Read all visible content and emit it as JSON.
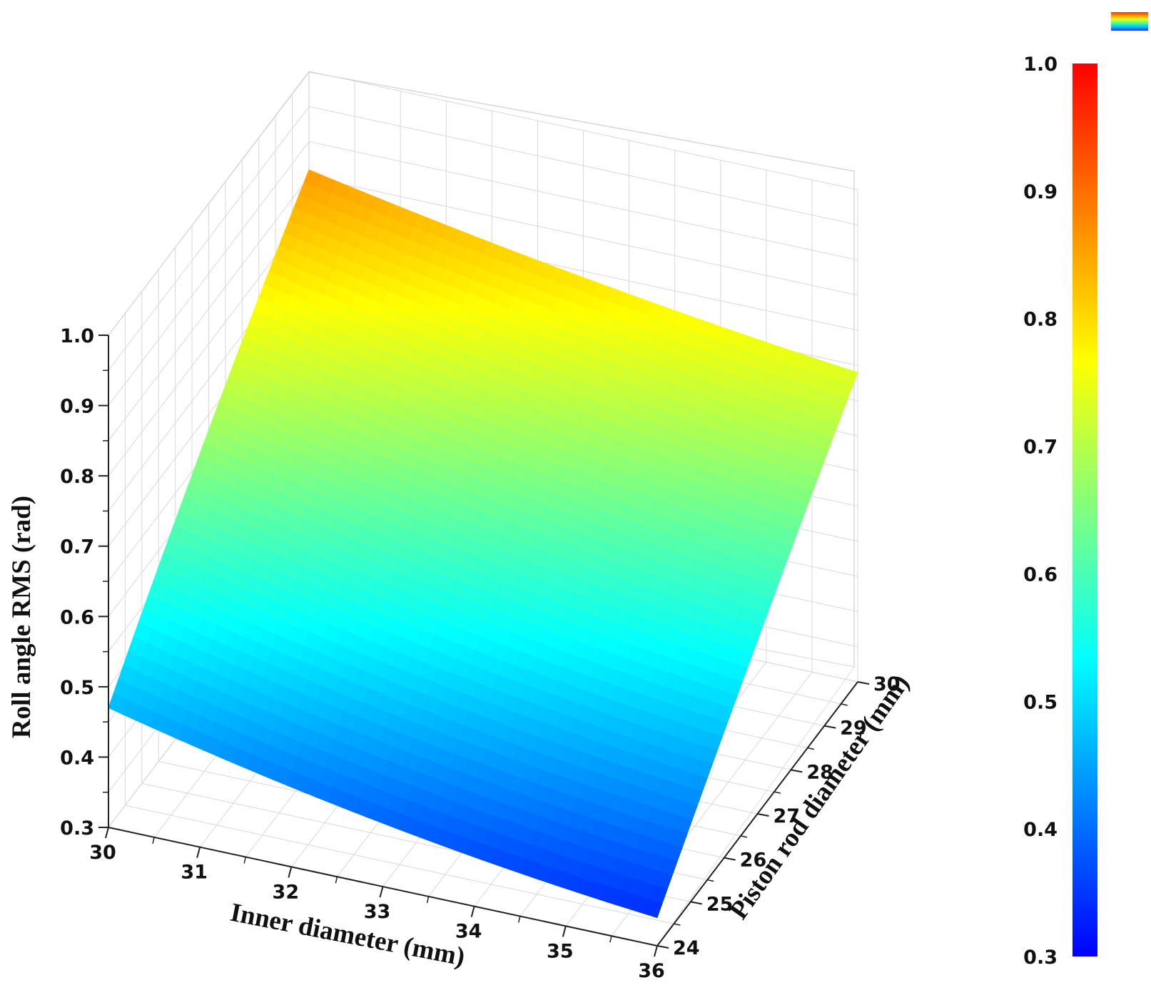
{
  "chart_data": {
    "type": "surface",
    "x": {
      "label": "Inner diameter (mm)",
      "range": [
        30,
        36
      ],
      "ticks": [
        "30",
        "31",
        "32",
        "33",
        "34",
        "35",
        "36"
      ]
    },
    "y": {
      "label": "Piston rod diameter (mm)",
      "range": [
        24,
        30
      ],
      "ticks": [
        "24",
        "25",
        "26",
        "27",
        "28",
        "29",
        "30"
      ]
    },
    "z": {
      "label": "Roll angle RMS (rad)",
      "range": [
        0.3,
        1.0
      ],
      "ticks": [
        "0.3",
        "0.4",
        "0.5",
        "0.6",
        "0.7",
        "0.8",
        "0.9",
        "1.0"
      ]
    },
    "surface_corners": [
      {
        "x": 30,
        "y": 24,
        "z": 0.47
      },
      {
        "x": 36,
        "y": 24,
        "z": 0.34
      },
      {
        "x": 30,
        "y": 30,
        "z": 0.86
      },
      {
        "x": 36,
        "y": 30,
        "z": 0.74
      }
    ],
    "colorbar": {
      "range": [
        0.3,
        1.0
      ],
      "ticks": [
        "0.3",
        "0.4",
        "0.5",
        "0.6",
        "0.7",
        "0.8",
        "0.9",
        "1.0"
      ],
      "colormap": [
        "#0000ff",
        "#0080ff",
        "#00ffff",
        "#80ff80",
        "#ffff00",
        "#ff8000",
        "#ff0000"
      ]
    },
    "grid": true
  }
}
